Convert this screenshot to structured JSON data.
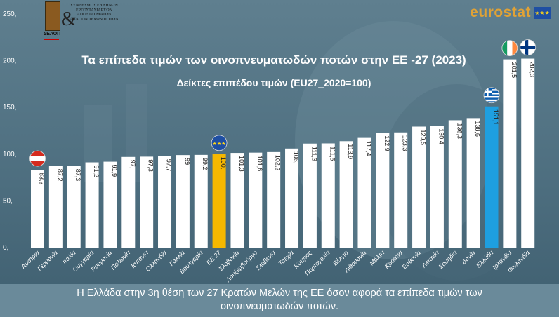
{
  "header": {
    "title": "Τα επίπεδα τιμών των οινοπνευματωδών ποτών στην ΕΕ -27 (2023)",
    "subtitle": "Δείκτες επιπέδου τιμών (EU27_2020=100)"
  },
  "logo": {
    "org_text": "ΣΥΝΔΕΣΜΟΣ ΕΛΛΗΝΩΝ ΕΡΓΟΣΤΑΣΙΑΡΧΩΝ ΑΠΟΣΤΑΓΜΑΤΩΝ ΑΛΚΟΟΛΟΥΧΩΝ ΠΟΤΩΝ",
    "acronym": "ΣΕΑΟΠ"
  },
  "brand": {
    "eurostat": "eurostat"
  },
  "footer": {
    "line1": "Η Ελλάδα στην 3η θέση των 27 Κρατών Μελών της ΕΕ όσον αφορά τα επίπεδα τιμών των",
    "line2": "οινοπνευματωδών ποτών."
  },
  "colors": {
    "bar_default": "#ffffff",
    "bar_eu": "#f5b800",
    "bar_greece": "#1e9fe0",
    "background": "#55788a"
  },
  "chart_data": {
    "type": "bar",
    "title": "Τα επίπεδα τιμών των οινοπνευματωδών ποτών στην ΕΕ -27 (2023)",
    "subtitle": "Δείκτες επιπέδου τιμών (EU27_2020=100)",
    "ylim": [
      0,
      250
    ],
    "yticks": [
      "0,",
      "50,",
      "100,",
      "150,",
      "200,",
      "250,"
    ],
    "grid": false,
    "categories": [
      "Αυστρία",
      "Γερμανία",
      "Ιταλία",
      "Ουγγαρία",
      "Ρουμανία",
      "Πολωνία",
      "Ισπανία",
      "Ολλανδία",
      "Γαλλία",
      "Βουλγαρία",
      "ΕΕ 27",
      "Σλοβακία",
      "Λουξεμβούργο",
      "Σλοβενία",
      "Τσεχία",
      "Κύπρος",
      "Πορτογαλία",
      "Βέλγιο",
      "Λιθουανία",
      "Μάλτα",
      "Κροατία",
      "Εσθονία",
      "Λετονία",
      "Σουηδία",
      "Δανία",
      "Ελλάδα",
      "Ιρλανδία",
      "Φινλανδία"
    ],
    "values": [
      83.3,
      87.2,
      87.3,
      91.2,
      91.9,
      97,
      97.3,
      97.7,
      99,
      99.2,
      100,
      101.3,
      101.6,
      102.2,
      106,
      111.3,
      111.5,
      113.9,
      117.4,
      122.9,
      123.3,
      129.5,
      130.4,
      136.3,
      138.6,
      151.1,
      201.5,
      202.3
    ],
    "value_labels": [
      "83,3",
      "87,2",
      "87,3",
      "91,2",
      "91,9",
      "97,",
      "97,3",
      "97,7",
      "99,",
      "99,2",
      "100,",
      "101,3",
      "101,6",
      "102,2",
      "106,",
      "111,3",
      "111,5",
      "113,9",
      "117,4",
      "122,9",
      "123,3",
      "129,5",
      "130,4",
      "136,3",
      "138,6",
      "151,1",
      "201,5",
      "202,3"
    ],
    "highlights": {
      "ΕΕ 27": "eu",
      "Ελλάδα": "greece"
    },
    "flag_markers": [
      "Αυστρία",
      "ΕΕ 27",
      "Ελλάδα",
      "Ιρλανδία",
      "Φινλανδία"
    ]
  }
}
